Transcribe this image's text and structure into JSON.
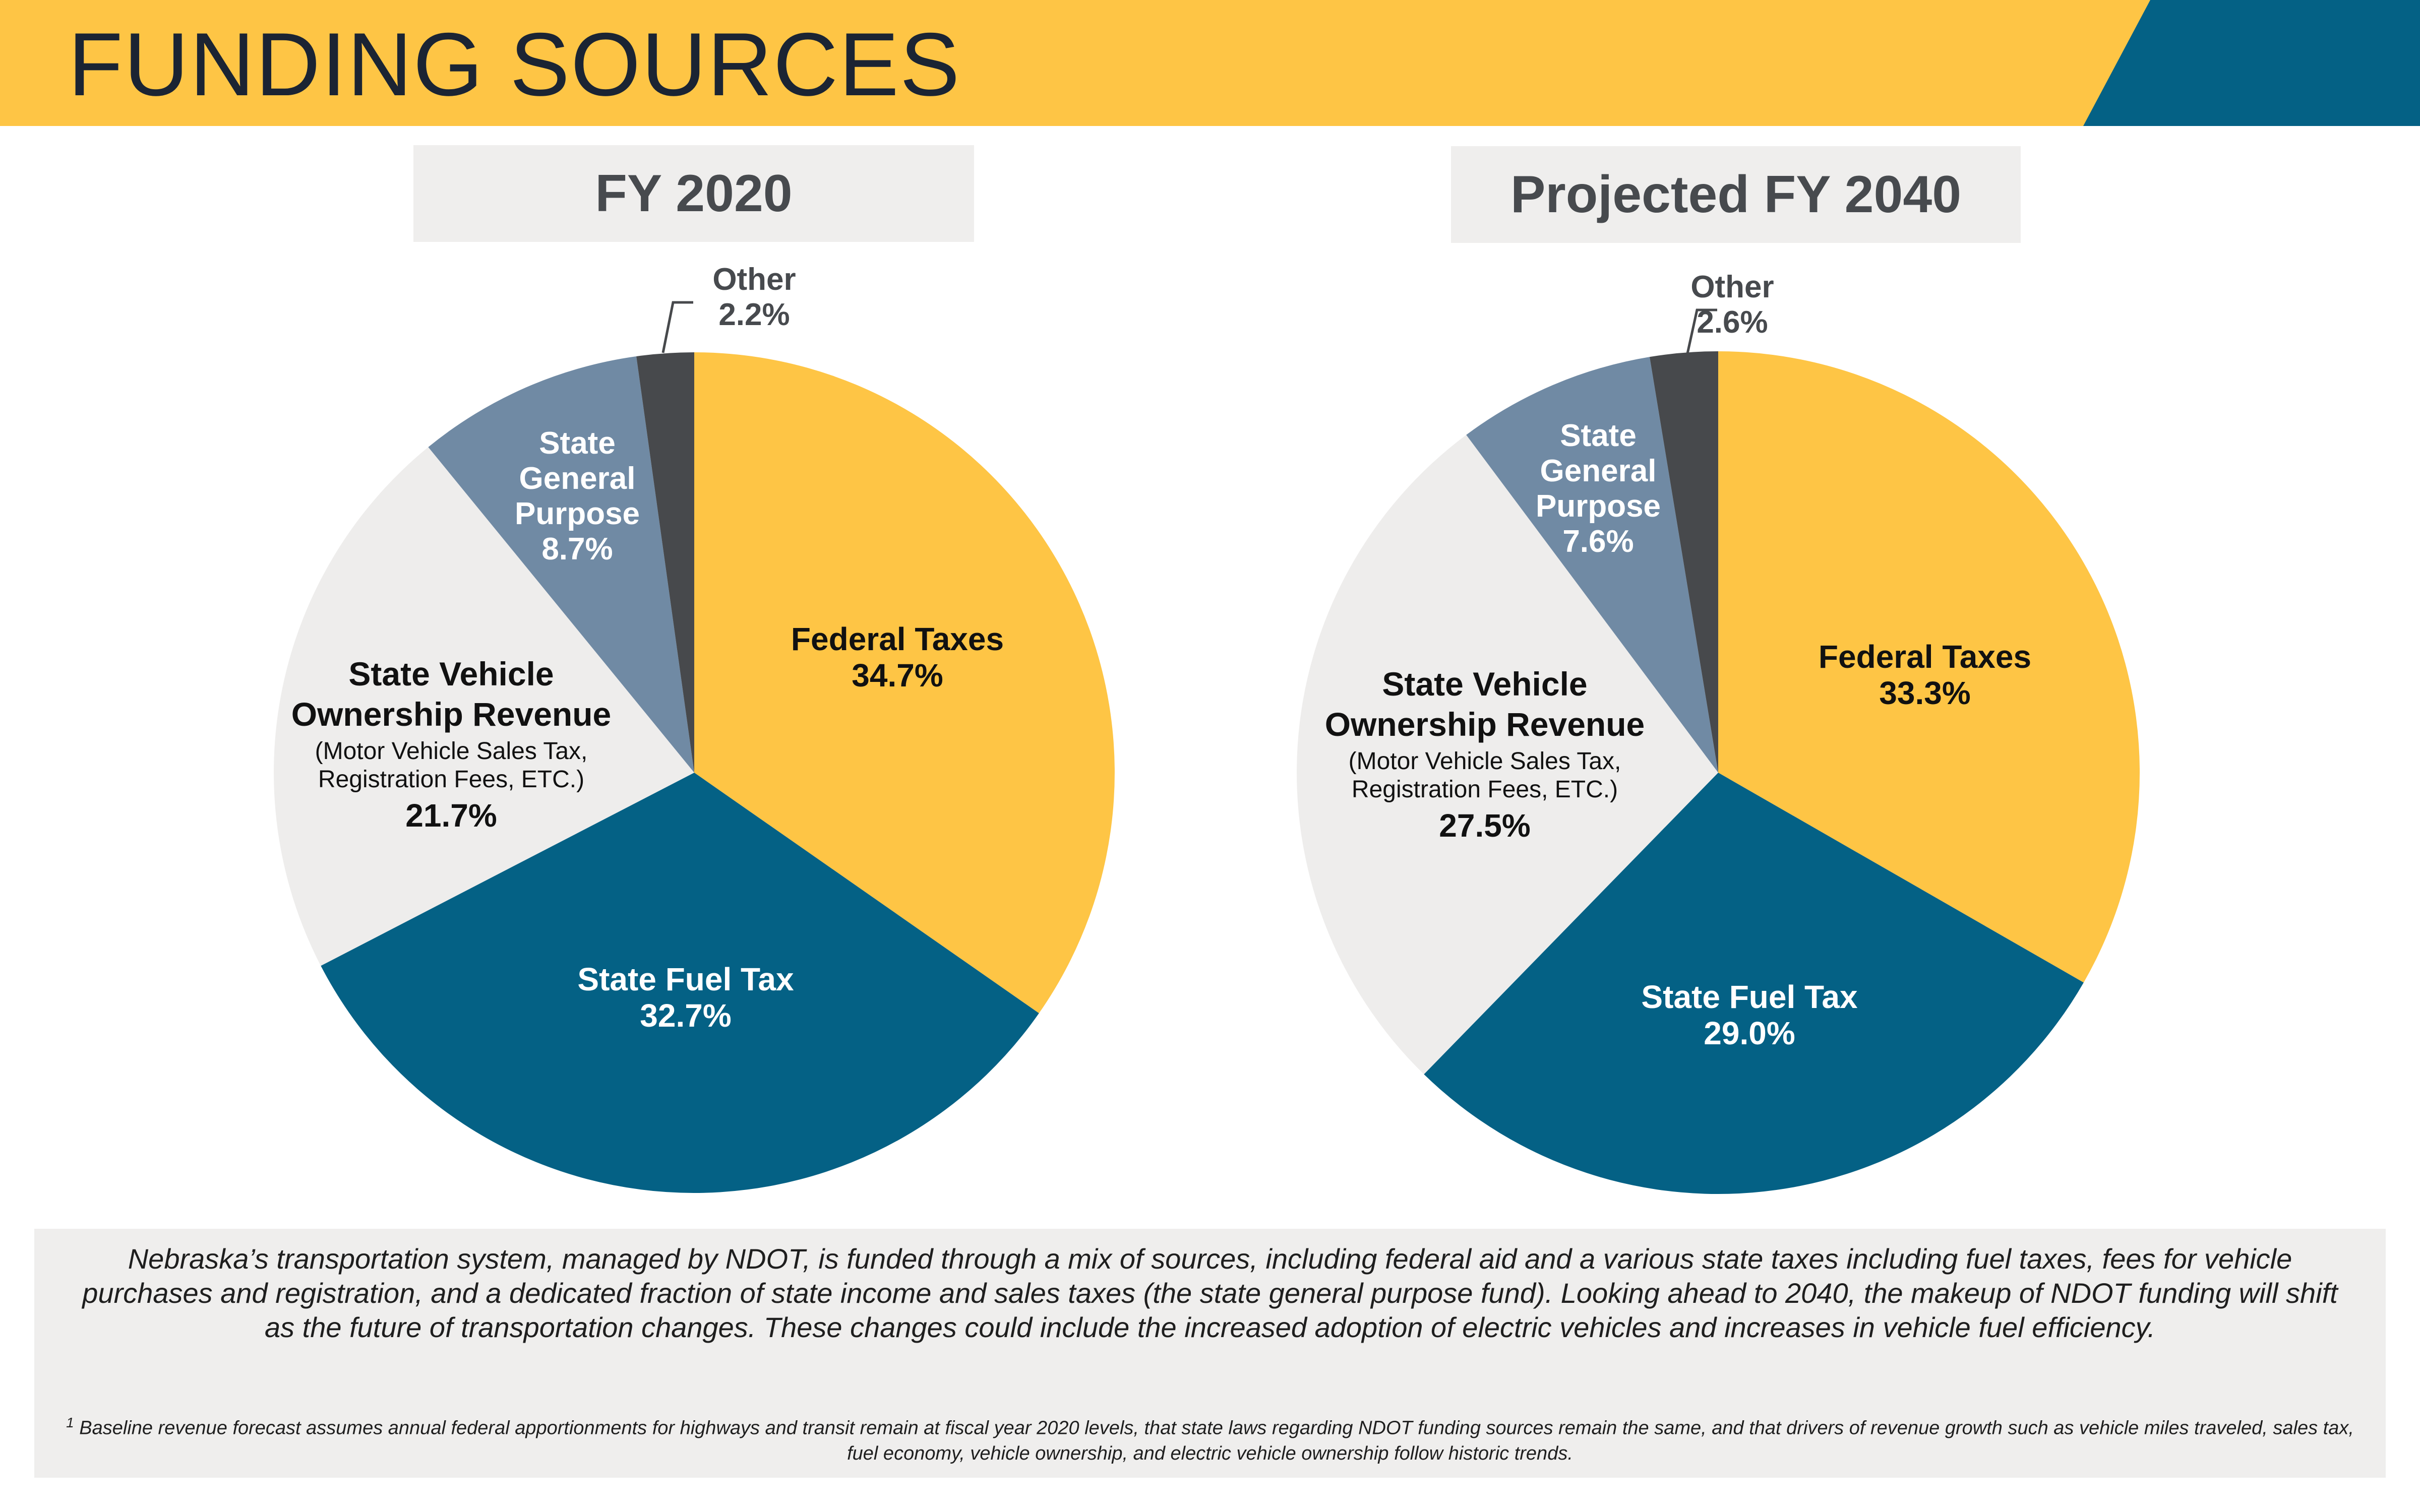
{
  "header": {
    "title": "FUNDING SOURCES",
    "colors": {
      "yellow": "#fec545",
      "teal": "#046185",
      "title_text": "#1b2433"
    }
  },
  "chart_data": [
    {
      "type": "pie",
      "title": "FY 2020",
      "slices": [
        {
          "label": "Federal Taxes",
          "value": 34.7,
          "display": "34.7%",
          "color": "#fec545",
          "text_color": "#111111"
        },
        {
          "label": "State Fuel Tax",
          "value": 32.7,
          "display": "32.7%",
          "color": "#046185",
          "text_color": "#ffffff"
        },
        {
          "label": "State Vehicle Ownership Revenue",
          "label_lines": [
            "State Vehicle",
            "Ownership Revenue"
          ],
          "sublabel_lines": [
            "(Motor Vehicle Sales Tax,",
            "Registration Fees, ETC.)"
          ],
          "value": 21.7,
          "display": "21.7%",
          "color": "#eeedec",
          "text_color": "#111111"
        },
        {
          "label": "State General Purpose",
          "label_lines": [
            "State",
            "General",
            "Purpose"
          ],
          "value": 8.7,
          "display": "8.7%",
          "color": "#708aa4",
          "text_color": "#ffffff"
        },
        {
          "label": "Other",
          "value": 2.2,
          "display": "2.2%",
          "color": "#47494c",
          "text_color": "#474a4e"
        }
      ]
    },
    {
      "type": "pie",
      "title": "Projected FY 2040",
      "slices": [
        {
          "label": "Federal Taxes",
          "value": 33.3,
          "display": "33.3%",
          "color": "#fec545",
          "text_color": "#111111"
        },
        {
          "label": "State Fuel Tax",
          "value": 29.0,
          "display": "29.0%",
          "color": "#046185",
          "text_color": "#ffffff"
        },
        {
          "label": "State Vehicle Ownership Revenue",
          "label_lines": [
            "State Vehicle",
            "Ownership Revenue"
          ],
          "sublabel_lines": [
            "(Motor Vehicle Sales Tax,",
            "Registration Fees, ETC.)"
          ],
          "value": 27.5,
          "display": "27.5%",
          "color": "#eeedec",
          "text_color": "#111111"
        },
        {
          "label": "State General Purpose",
          "label_lines": [
            "State",
            "General",
            "Purpose"
          ],
          "value": 7.6,
          "display": "7.6%",
          "color": "#708aa4",
          "text_color": "#ffffff"
        },
        {
          "label": "Other",
          "value": 2.6,
          "display": "2.6%",
          "color": "#47494c",
          "text_color": "#474a4e"
        }
      ]
    }
  ],
  "description": "Nebraska’s transportation system, managed by NDOT, is funded through a mix of sources, including federal aid and a various state taxes including fuel taxes, fees for vehicle purchases and registration, and a dedicated fraction of state income and sales taxes (the state general purpose fund). Looking ahead to 2040, the makeup of NDOT funding will shift as the future of transportation changes. These changes could include the increased adoption of electric vehicles and increases in vehicle fuel efficiency.",
  "footnote": {
    "marker": "1",
    "text": "Baseline revenue forecast assumes annual federal apportionments for highways and transit remain at fiscal year 2020 levels, that state laws regarding NDOT funding sources remain the same, and that drivers of revenue growth such as vehicle miles traveled, sales tax, fuel economy, vehicle ownership, and electric vehicle ownership follow historic trends."
  }
}
